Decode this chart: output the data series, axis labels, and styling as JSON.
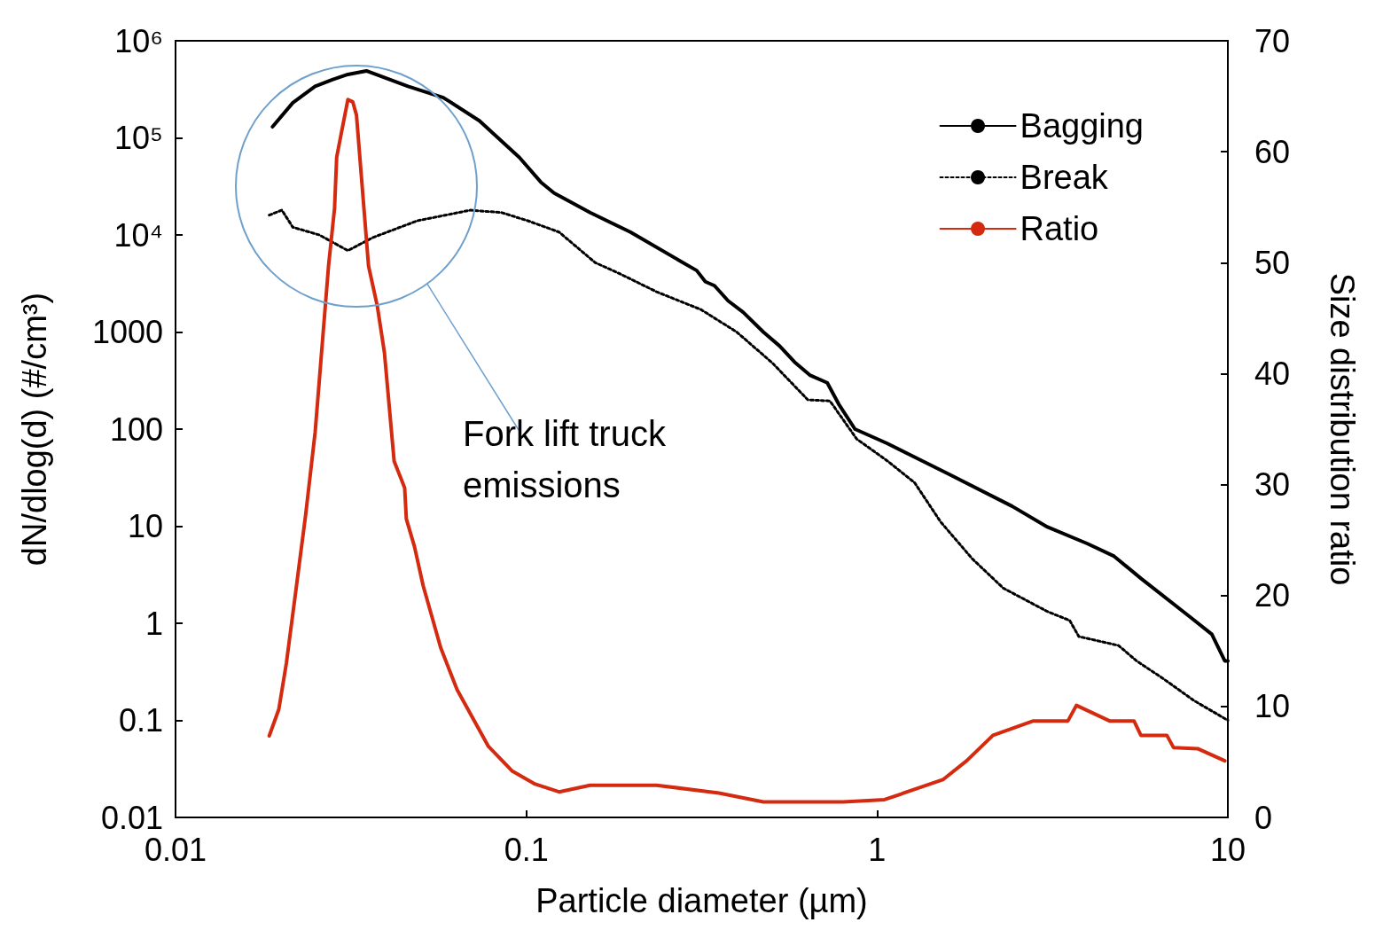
{
  "chart_data": {
    "type": "line",
    "xlabel": "Particle diameter (µm)",
    "ylabel": "dN/dlog(d) (#/cm³)",
    "y2label": "Size distribution ratio",
    "annotations": [
      "Fork lift truck emissions"
    ],
    "log": "xy",
    "legend": "top right",
    "marker": "none",
    "xlim": [
      0.01,
      10
    ],
    "xticks": [
      0.01,
      0.1,
      1,
      10
    ],
    "ylim": [
      0.01,
      1000000
    ],
    "yticks": [
      0.01,
      0.1,
      1,
      10,
      100,
      1000,
      {
        "value": 10000,
        "label": "10⁴"
      },
      {
        "value": 100000,
        "label": "10⁵"
      },
      {
        "value": 1000000,
        "label": "10⁶"
      }
    ],
    "y2lim": [
      0,
      70
    ],
    "y2ticks": [
      0,
      10,
      20,
      30,
      40,
      50,
      60,
      70
    ],
    "series": [
      {
        "name": "Bagging",
        "color": "#000000",
        "line_style": "solid",
        "x": [
          0.0189,
          0.0216,
          0.025,
          0.0281,
          0.031,
          0.035,
          0.046,
          0.058,
          0.0735,
          0.0955,
          0.11,
          0.12,
          0.152,
          0.198,
          0.272,
          0.306,
          0.324,
          0.344,
          0.376,
          0.415,
          0.474,
          0.527,
          0.582,
          0.643,
          0.721,
          0.778,
          0.865,
          1.07,
          1.61,
          2.43,
          3.06,
          3.98,
          4.74,
          5.65,
          7.78,
          9.0,
          9.8,
          10
        ],
        "values": [
          130000,
          230000,
          340000,
          400000,
          450000,
          490000,
          340000,
          260000,
          150000,
          63000,
          35000,
          27000,
          17000,
          10700,
          5500,
          4300,
          3300,
          3000,
          2100,
          1600,
          1000,
          720,
          490,
          360,
          300,
          180,
          100,
          71,
          34,
          16,
          9.8,
          6.6,
          4.9,
          2.9,
          1.17,
          0.77,
          0.41,
          0.41
        ]
      },
      {
        "name": "Break",
        "color": "#000000",
        "line_style": "dotted",
        "x": [
          0.0185,
          0.0201,
          0.0216,
          0.0257,
          0.031,
          0.0365,
          0.0489,
          0.0693,
          0.085,
          0.101,
          0.124,
          0.157,
          0.187,
          0.235,
          0.315,
          0.398,
          0.503,
          0.635,
          0.734,
          0.875,
          1.07,
          1.28,
          1.52,
          1.87,
          2.29,
          3.06,
          3.54,
          3.76,
          4.88,
          5.49,
          6.53,
          8.0,
          10
        ],
        "values": [
          16000,
          18000,
          12000,
          10000,
          6900,
          9400,
          14000,
          18000,
          17000,
          14000,
          10700,
          5200,
          3900,
          2600,
          1700,
          1000,
          480,
          200,
          195,
          79,
          47,
          28,
          11,
          4.6,
          2.3,
          1.32,
          1.07,
          0.73,
          0.59,
          0.41,
          0.27,
          0.16,
          0.1
        ]
      },
      {
        "name": "Ratio",
        "color": "#d42a10",
        "line_style": "solid",
        "axis": "y2",
        "x": [
          0.0185,
          0.0197,
          0.0207,
          0.022,
          0.0235,
          0.025,
          0.0273,
          0.0284,
          0.0288,
          0.0297,
          0.031,
          0.032,
          0.0328,
          0.0355,
          0.0376,
          0.0394,
          0.042,
          0.045,
          0.0455,
          0.048,
          0.0508,
          0.057,
          0.0635,
          0.078,
          0.091,
          0.106,
          0.124,
          0.152,
          0.235,
          0.354,
          0.474,
          0.8,
          1.05,
          1.54,
          1.8,
          2.14,
          2.79,
          3.5,
          3.7,
          4.6,
          5.4,
          5.65,
          6.7,
          7.0,
          8.2,
          9.8
        ],
        "values": [
          7.35,
          9.75,
          13.9,
          20.3,
          27.3,
          34.7,
          49.7,
          54.9,
          59.5,
          61.7,
          64.7,
          64.5,
          63.3,
          49.7,
          46.1,
          41.9,
          32.1,
          29.7,
          26.9,
          24.4,
          20.9,
          15.3,
          11.5,
          6.4,
          4.2,
          3.0,
          2.3,
          2.9,
          2.9,
          2.2,
          1.4,
          1.4,
          1.6,
          3.4,
          5.1,
          7.4,
          8.7,
          8.7,
          10.1,
          8.7,
          8.7,
          7.4,
          7.4,
          6.3,
          6.2,
          5.1
        ]
      }
    ]
  }
}
